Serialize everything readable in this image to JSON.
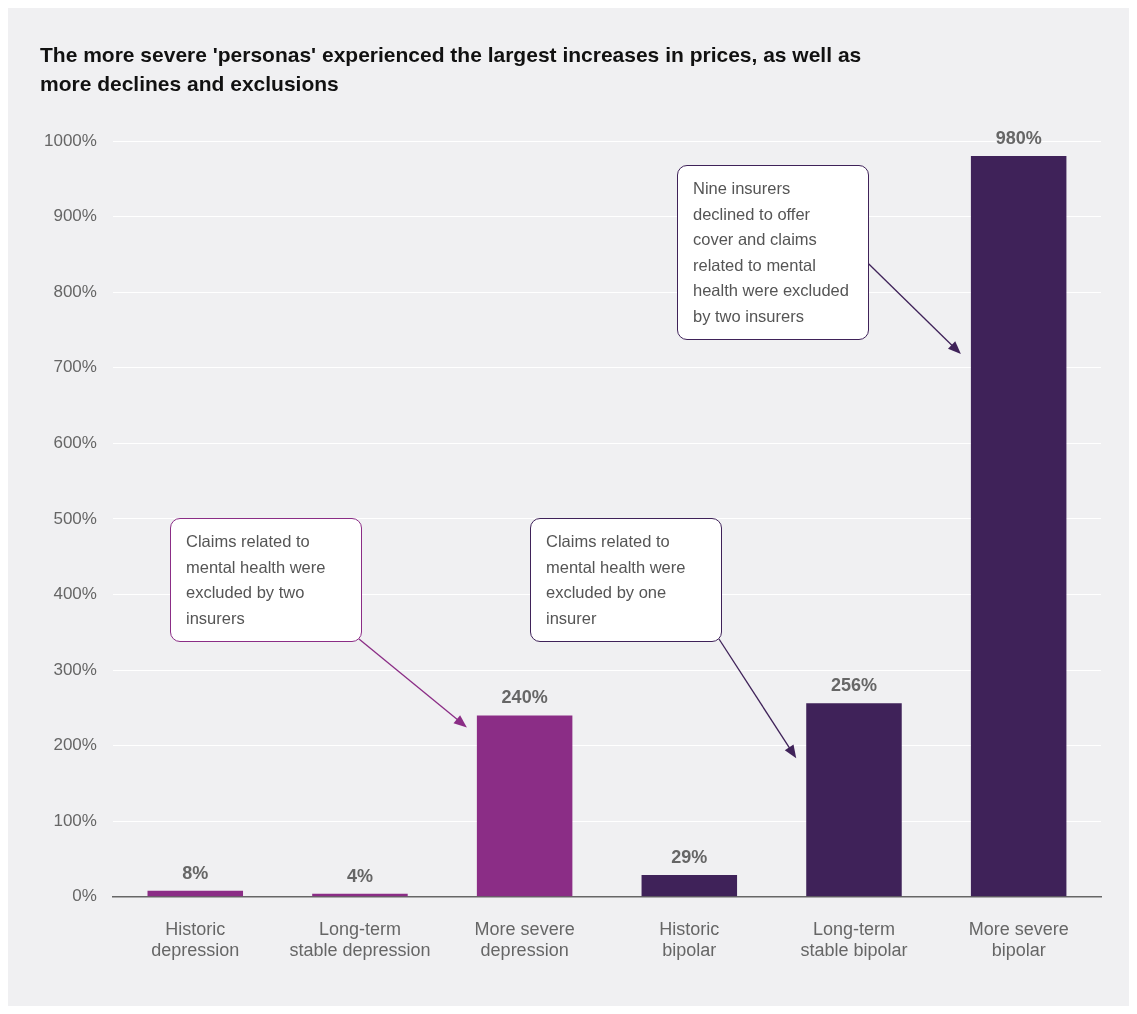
{
  "chart_data": {
    "type": "bar",
    "title": "The more severe 'personas' experienced the largest increases in prices, as well as more declines and exclusions",
    "categories": [
      "Historic depression",
      "Long-term stable depression",
      "More severe depression",
      "Historic bipolar",
      "Long-term stable bipolar",
      "More severe bipolar"
    ],
    "values": [
      8,
      4,
      240,
      29,
      256,
      980
    ],
    "colors": [
      "#8b2d86",
      "#8b2d86",
      "#8b2d86",
      "#3f2259",
      "#3f2259",
      "#3f2259"
    ],
    "value_labels": [
      "8%",
      "4%",
      "240%",
      "29%",
      "256%",
      "980%"
    ],
    "ylim": [
      0,
      1000
    ],
    "yticks": [
      {
        "value": 0,
        "label": "0%"
      },
      {
        "value": 100,
        "label": "100%"
      },
      {
        "value": 200,
        "label": "200%"
      },
      {
        "value": 300,
        "label": "300%"
      },
      {
        "value": 400,
        "label": "400%"
      },
      {
        "value": 500,
        "label": "500%"
      },
      {
        "value": 600,
        "label": "600%"
      },
      {
        "value": 700,
        "label": "700%"
      },
      {
        "value": 800,
        "label": "800%"
      },
      {
        "value": 900,
        "label": "900%"
      },
      {
        "value": 1000,
        "label": "1000%"
      }
    ],
    "grid": "y",
    "legend": false,
    "annotations": [
      "Claims related to mental health were excluded by two insurers",
      "Claims related to mental health were excluded by one insurer",
      "Nine insurers declined to offer cover and claims related to mental health were excluded by two insurers"
    ]
  }
}
